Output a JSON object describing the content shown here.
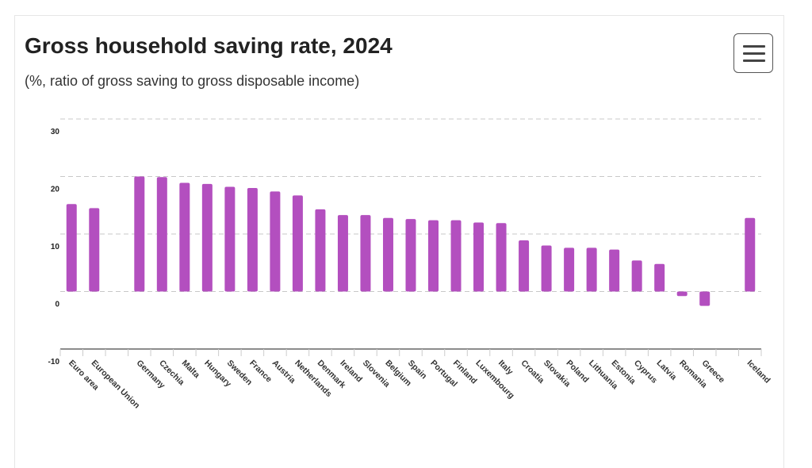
{
  "header": {
    "title": "Gross household saving rate, 2024",
    "subtitle": "(%, ratio of gross saving to gross disposable income)",
    "menu_icon": "hamburger-menu-icon"
  },
  "chart_data": {
    "type": "bar",
    "title": "Gross household saving rate, 2024",
    "subtitle": "(%, ratio of gross saving to gross disposable income)",
    "xlabel": "",
    "ylabel": "",
    "ylim": [
      -10,
      30
    ],
    "yticks": [
      30,
      20,
      10,
      0,
      -10
    ],
    "grid": true,
    "bar_color": "#b34fbf",
    "categories": [
      "Euro area",
      "European Union",
      "",
      "Germany",
      "Czechia",
      "Malta",
      "Hungary",
      "Sweden",
      "France",
      "Austria",
      "Netherlands",
      "Denmark",
      "Ireland",
      "Slovenia",
      "Belgium",
      "Spain",
      "Portugal",
      "Finland",
      "Luxembourg",
      "Italy",
      "Croatia",
      "Slovakia",
      "Poland",
      "Lithuania",
      "Estonia",
      "Cyprus",
      "Latvia",
      "Romania",
      "Greece",
      "",
      "Iceland"
    ],
    "values": [
      15.2,
      14.5,
      null,
      20.0,
      19.9,
      18.9,
      18.7,
      18.2,
      18.0,
      17.4,
      16.7,
      14.3,
      13.3,
      13.3,
      12.8,
      12.6,
      12.4,
      12.4,
      12.0,
      11.9,
      8.9,
      8.0,
      7.6,
      7.6,
      7.3,
      5.4,
      4.8,
      -0.8,
      -2.5,
      null,
      12.8
    ]
  }
}
